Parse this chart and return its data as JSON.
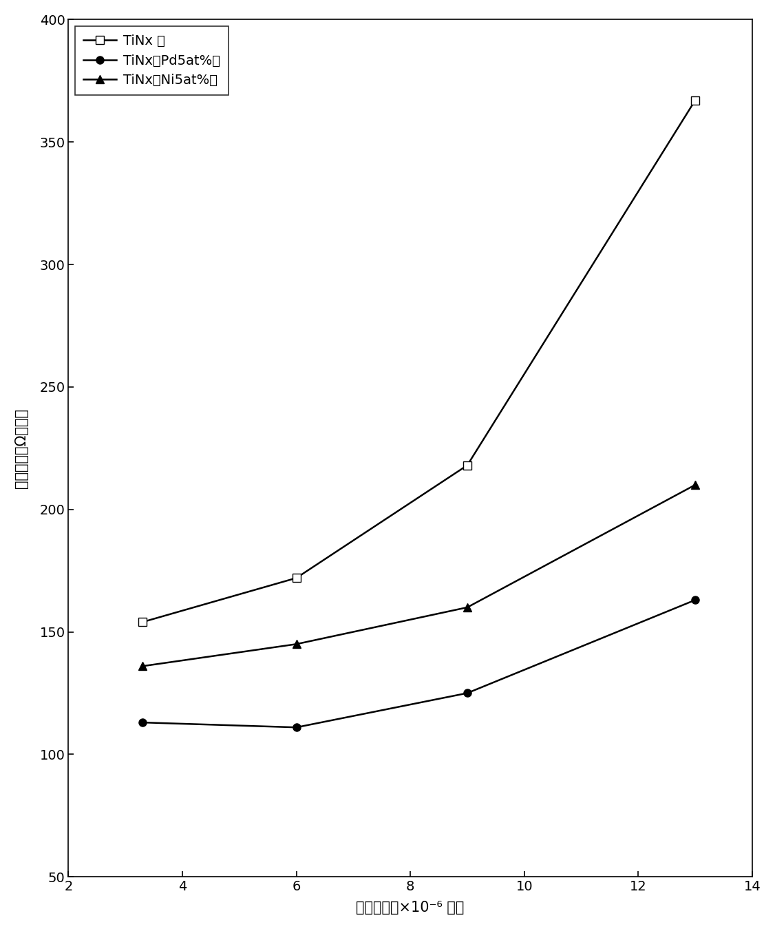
{
  "title": "",
  "xlabel": "残留气压（×10⁻⁶ 毫）",
  "ylabel": "表面电阵（Ω／口）",
  "xlim": [
    2,
    14
  ],
  "ylim": [
    50,
    400
  ],
  "xticks": [
    2,
    4,
    6,
    8,
    10,
    12,
    14
  ],
  "yticks": [
    50,
    100,
    150,
    200,
    250,
    300,
    350,
    400
  ],
  "series": [
    {
      "label": "TiNx 膜",
      "x": [
        3.3,
        6.0,
        9.0,
        13.0
      ],
      "y": [
        154,
        172,
        218,
        367
      ],
      "marker": "s",
      "marker_size": 8,
      "marker_facecolor": "white",
      "color": "black",
      "linewidth": 1.8
    },
    {
      "label": "TiNx：Pd5at%膜",
      "x": [
        3.3,
        6.0,
        9.0,
        13.0
      ],
      "y": [
        113,
        111,
        125,
        163
      ],
      "marker": "o",
      "marker_size": 8,
      "marker_facecolor": "black",
      "color": "black",
      "linewidth": 1.8
    },
    {
      "label": "TiNx：Ni5at%膜",
      "x": [
        3.3,
        6.0,
        9.0,
        13.0
      ],
      "y": [
        136,
        145,
        160,
        210
      ],
      "marker": "^",
      "marker_size": 8,
      "marker_facecolor": "black",
      "color": "black",
      "linewidth": 1.8
    }
  ],
  "background_color": "white",
  "font_size": 15,
  "tick_font_size": 14,
  "figsize": [
    11.26,
    13.49
  ],
  "dpi": 100
}
